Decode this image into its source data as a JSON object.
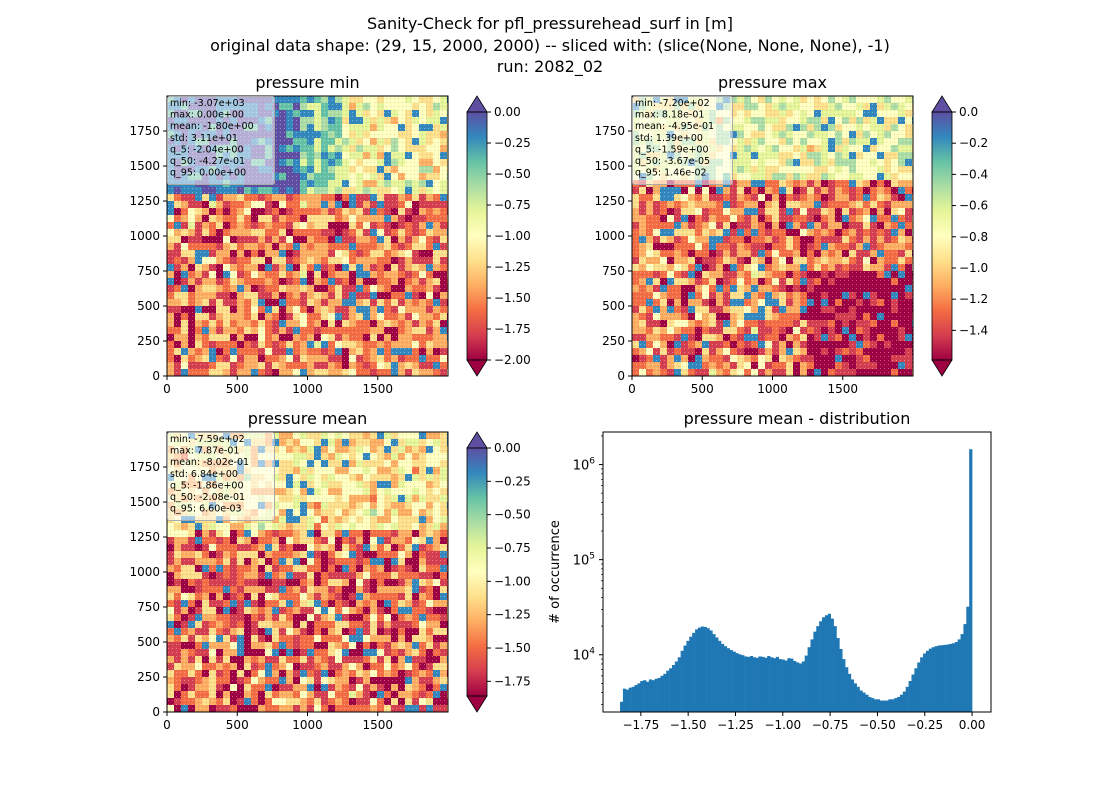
{
  "figure": {
    "title_lines": [
      "Sanity-Check for pfl_pressurehead_surf in [m]",
      "original data shape: (29, 15, 2000, 2000) -- sliced with: (slice(None, None, None), -1)",
      "run: 2082_02"
    ]
  },
  "colors": {
    "spectral": [
      "#9e0142",
      "#d53e4f",
      "#f46d43",
      "#fdae61",
      "#fee08b",
      "#ffffbf",
      "#e6f598",
      "#abdda4",
      "#66c2a5",
      "#3288bd",
      "#5e4fa2"
    ],
    "hist_bar": "#1f77b4",
    "stats_box_bg": "#ffffff",
    "stats_box_border": "#aaaaaa"
  },
  "chart_data": [
    {
      "type": "heatmap",
      "title": "pressure min",
      "x_ticks": [
        "0",
        "500",
        "1000",
        "1500"
      ],
      "y_ticks": [
        "0",
        "250",
        "500",
        "750",
        "1000",
        "1250",
        "1500",
        "1750"
      ],
      "xlim": [
        0,
        2000
      ],
      "ylim": [
        0,
        2000
      ],
      "colorbar": {
        "vmin": -2.0,
        "vmax": 0.0,
        "ticks": [
          "0.00",
          "−0.25",
          "−0.50",
          "−0.75",
          "−1.00",
          "−1.25",
          "−1.50",
          "−1.75",
          "−2.00"
        ],
        "extend": "both"
      },
      "stats": [
        "min: -3.07e+03",
        "max: 0.00e+00",
        "mean: -1.80e+00",
        "std: 3.11e+01",
        "q_5: -2.04e+00",
        "q_50: -4.27e-01",
        "q_95: 0.00e+00"
      ]
    },
    {
      "type": "heatmap",
      "title": "pressure max",
      "x_ticks": [
        "0",
        "500",
        "1000",
        "1500"
      ],
      "y_ticks": [
        "0",
        "250",
        "500",
        "750",
        "1000",
        "1250",
        "1500",
        "1750"
      ],
      "xlim": [
        0,
        2000
      ],
      "ylim": [
        0,
        2000
      ],
      "colorbar": {
        "vmin": -1.59,
        "vmax": 0.0,
        "ticks": [
          "0.0",
          "−0.2",
          "−0.4",
          "−0.6",
          "−0.8",
          "−1.0",
          "−1.2",
          "−1.4"
        ],
        "extend": "both"
      },
      "stats": [
        "min: -7.20e+02",
        "max: 8.18e-01",
        "mean: -4.95e-01",
        "std: 1.39e+00",
        "q_5: -1.59e+00",
        "q_50: -3.67e-05",
        "q_95: 1.46e-02"
      ]
    },
    {
      "type": "heatmap",
      "title": "pressure mean",
      "x_ticks": [
        "0",
        "500",
        "1000",
        "1500"
      ],
      "y_ticks": [
        "0",
        "250",
        "500",
        "750",
        "1000",
        "1250",
        "1500",
        "1750"
      ],
      "xlim": [
        0,
        2000
      ],
      "ylim": [
        0,
        2000
      ],
      "colorbar": {
        "vmin": -1.86,
        "vmax": 0.0,
        "ticks": [
          "0.00",
          "−0.25",
          "−0.50",
          "−0.75",
          "−1.00",
          "−1.25",
          "−1.50",
          "−1.75"
        ],
        "extend": "both"
      },
      "stats": [
        "min: -7.59e+02",
        "max: 7.87e-01",
        "mean: -8.02e-01",
        "std: 6.84e+00",
        "q_5: -1.86e+00",
        "q_50: -2.08e-01",
        "q_95: 6.60e-03"
      ]
    },
    {
      "type": "bar",
      "title": "pressure mean - distribution",
      "ylabel": "# of occurrence",
      "y_scale": "log",
      "xlim": [
        -1.95,
        0.1
      ],
      "ylim": [
        2500,
        2200000
      ],
      "x_ticks": [
        -1.75,
        -1.5,
        -1.25,
        -1.0,
        -0.75,
        -0.5,
        -0.25,
        0.0
      ],
      "x_tick_labels": [
        "−1.75",
        "−1.50",
        "−1.25",
        "−1.00",
        "−0.75",
        "−0.50",
        "−0.25",
        "0.00"
      ],
      "y_ticks": [
        10000,
        100000,
        1000000
      ],
      "y_tick_labels": [
        "10^4",
        "10^5",
        "10^6"
      ],
      "bin_start": -1.86,
      "bin_end": 0.0,
      "values": [
        3200,
        4400,
        4300,
        4500,
        4600,
        4800,
        5000,
        5300,
        5400,
        5200,
        5500,
        5400,
        5600,
        5700,
        6000,
        6300,
        6800,
        7200,
        7800,
        8500,
        9400,
        11000,
        12500,
        14000,
        15500,
        17000,
        18500,
        19300,
        19800,
        19600,
        19000,
        18000,
        16500,
        15200,
        14000,
        13000,
        12300,
        11700,
        11200,
        10800,
        10400,
        10100,
        9900,
        9600,
        9500,
        9700,
        9400,
        9300,
        9600,
        9500,
        9300,
        9700,
        9400,
        9200,
        9500,
        9000,
        8900,
        8700,
        9200,
        9100,
        8600,
        8300,
        8100,
        8500,
        9800,
        12000,
        14500,
        17500,
        20000,
        22500,
        24800,
        26000,
        27000,
        24000,
        20000,
        15000,
        11500,
        9000,
        7400,
        6300,
        5500,
        5000,
        4600,
        4200,
        4000,
        3800,
        3600,
        3500,
        3400,
        3400,
        3300,
        3300,
        3300,
        3400,
        3400,
        3500,
        3600,
        3800,
        4100,
        4600,
        5300,
        6200,
        7200,
        8300,
        9400,
        10300,
        11000,
        11600,
        12000,
        12300,
        12500,
        12600,
        12700,
        12800,
        13000,
        13200,
        13600,
        14500,
        16500,
        21000,
        32000,
        1450000
      ]
    }
  ]
}
